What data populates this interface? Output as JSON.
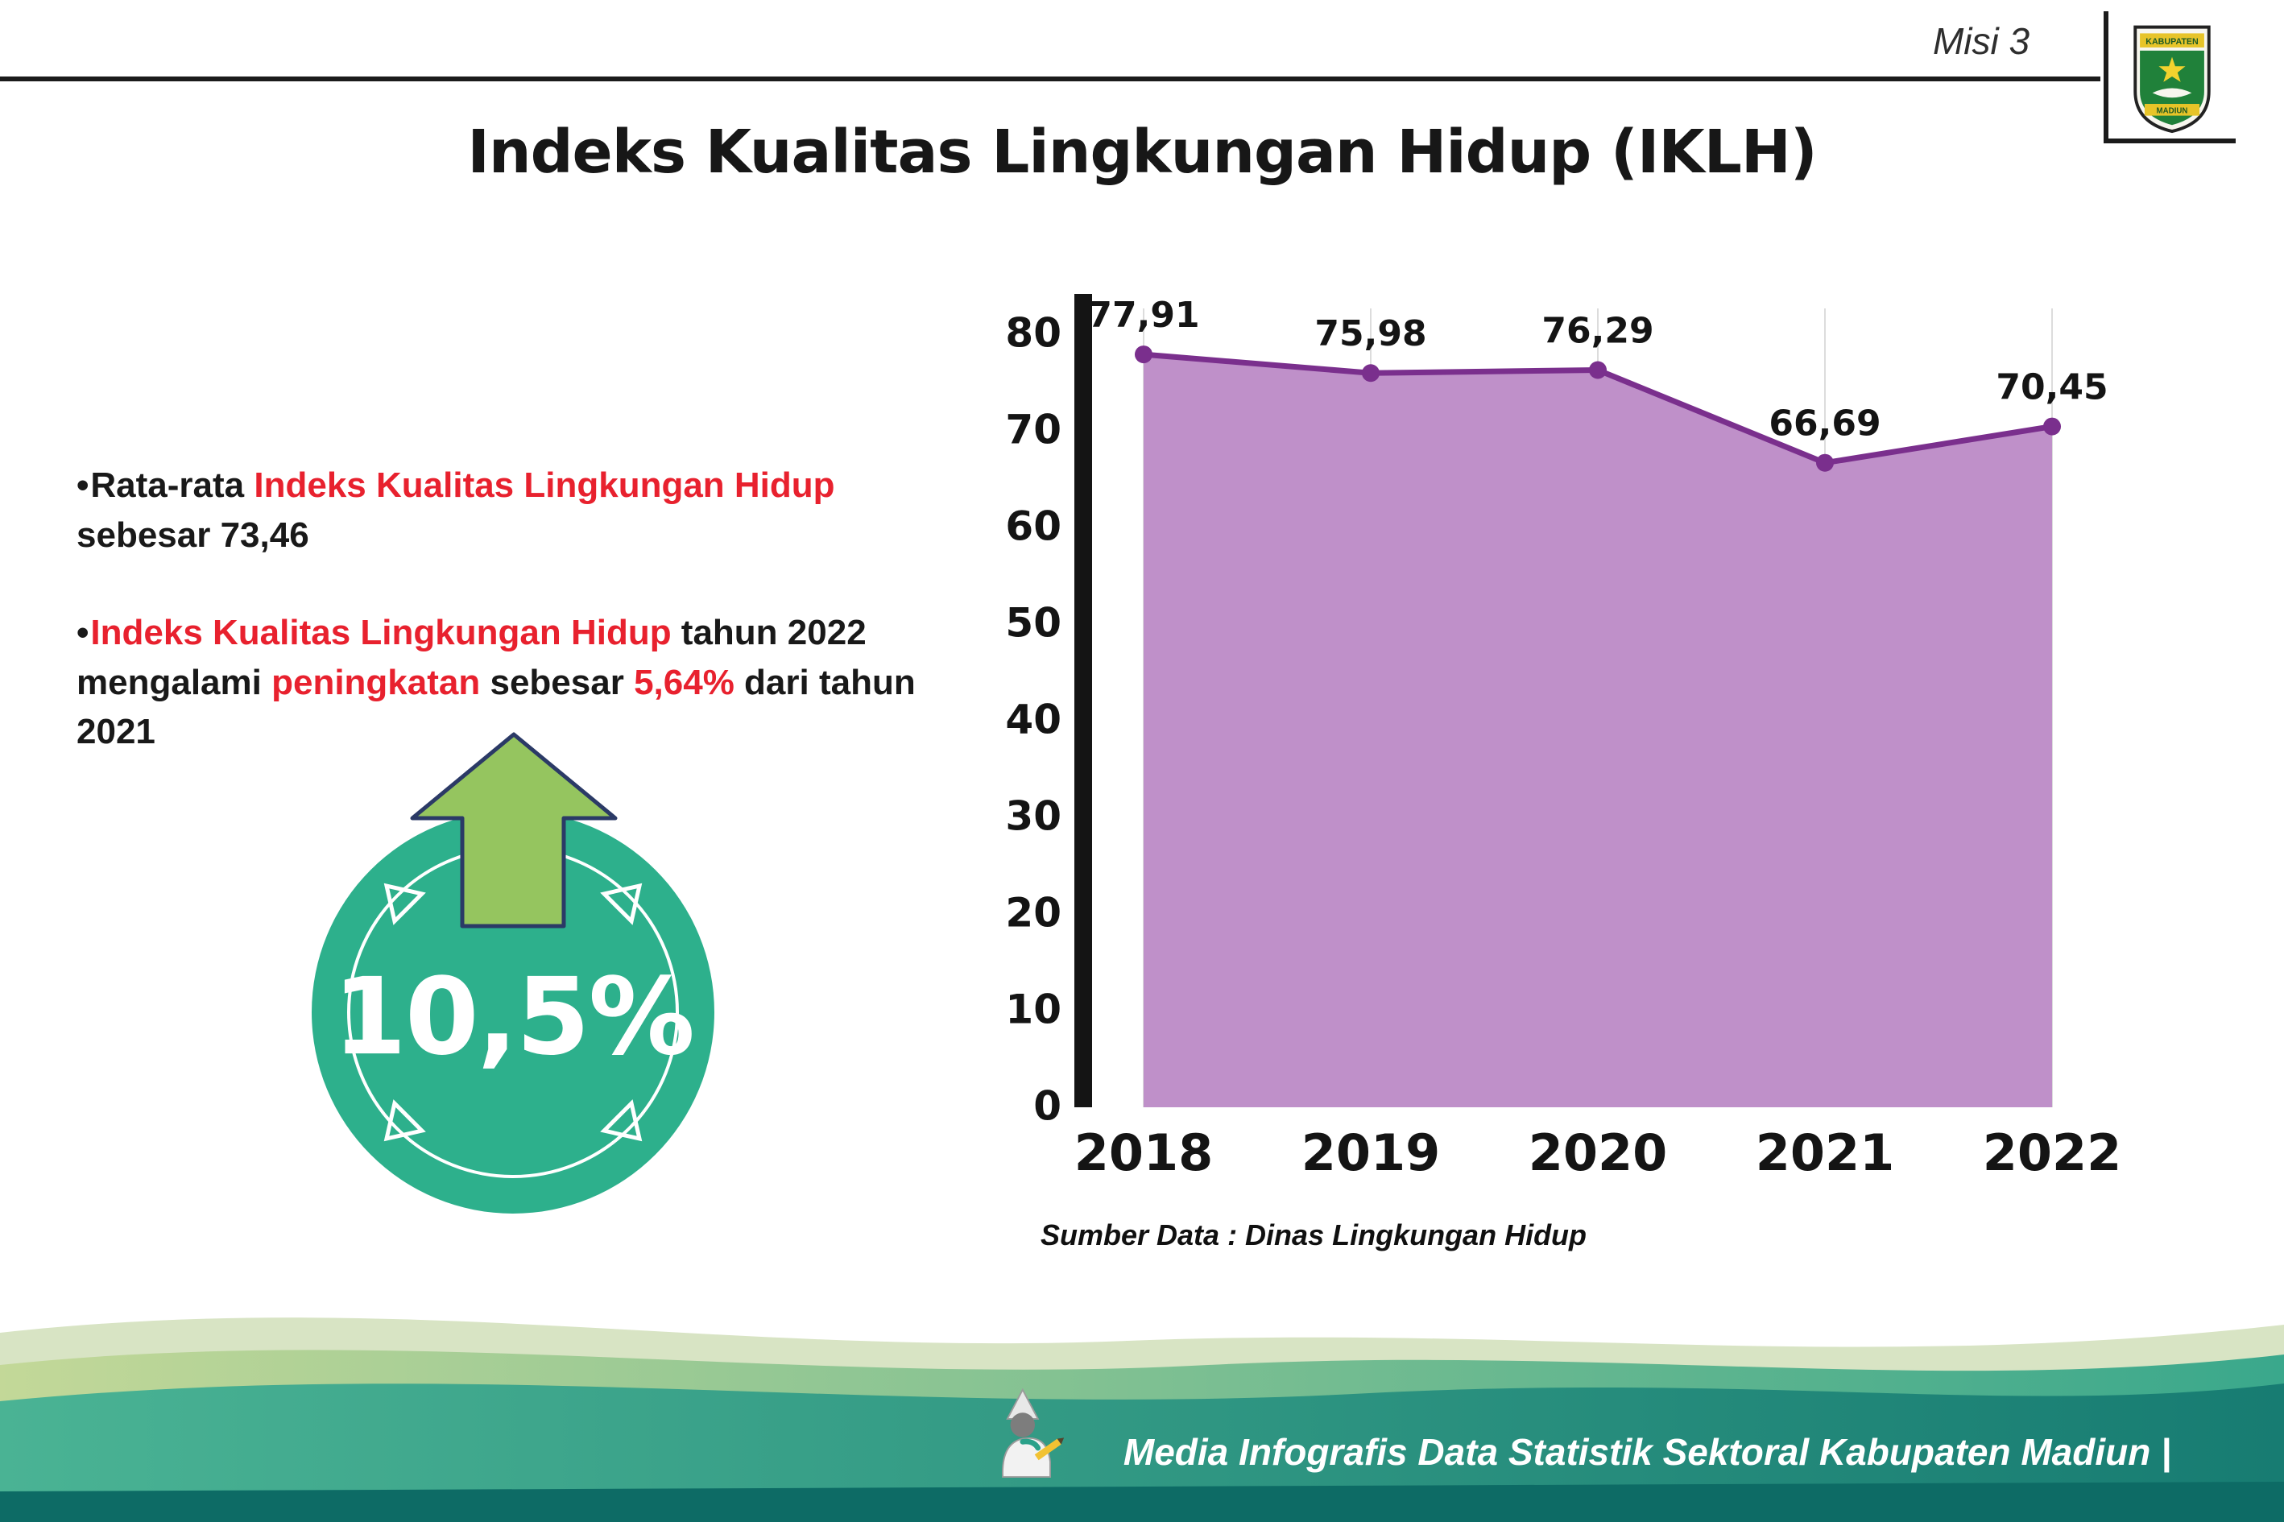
{
  "header": {
    "misi_label": "Misi 3",
    "logo": {
      "line1": "KABUPATEN",
      "line2": "MADIUN"
    }
  },
  "title": "Indeks Kualitas Lingkungan Hidup (IKLH)",
  "bullet_marker": "•",
  "bullets": [
    {
      "segments": [
        {
          "text": "Rata-rata ",
          "color": "black"
        },
        {
          "text": "Indeks Kualitas Lingkungan Hidup",
          "color": "red"
        },
        {
          "text": " sebesar 73,46",
          "color": "black"
        }
      ]
    },
    {
      "segments": [
        {
          "text": "Indeks Kualitas Lingkungan Hidup",
          "color": "red"
        },
        {
          "text": " tahun 2022 mengalami ",
          "color": "black"
        },
        {
          "text": "peningkatan",
          "color": "red"
        },
        {
          "text": " sebesar ",
          "color": "black"
        },
        {
          "text": "5,64%",
          "color": "red"
        },
        {
          "text": " dari tahun 2021",
          "color": "black"
        }
      ]
    }
  ],
  "badge": {
    "value": "10,5%"
  },
  "chart_data": {
    "type": "area",
    "title": "Indeks Kualitas Lingkungan Hidup (IKLH)",
    "categories": [
      "2018",
      "2019",
      "2020",
      "2021",
      "2022"
    ],
    "values": [
      77.91,
      75.98,
      76.29,
      66.69,
      70.45
    ],
    "value_labels": [
      "77,91",
      "75,98",
      "76,29",
      "66,69",
      "70,45"
    ],
    "ylim": [
      0,
      80
    ],
    "yticks": [
      0,
      10,
      20,
      30,
      40,
      50,
      60,
      70,
      80
    ],
    "legend": "none",
    "grid": "vertical-light",
    "area_color": "#bf90c9",
    "line_color": "#7a2f8d",
    "source": "Sumber Data : Dinas Lingkungan Hidup"
  },
  "footer": {
    "text": "Media Infografis Data Statistik Sektoral Kabupaten Madiun |"
  },
  "colors": {
    "accent_red": "#e8212e",
    "badge_teal": "#2db08c",
    "arrow_green": "#95c55f",
    "arrow_outline": "#2b3a66",
    "wave_sage": "#d8e4c4",
    "wave_teal_dark": "#0d6b65"
  }
}
